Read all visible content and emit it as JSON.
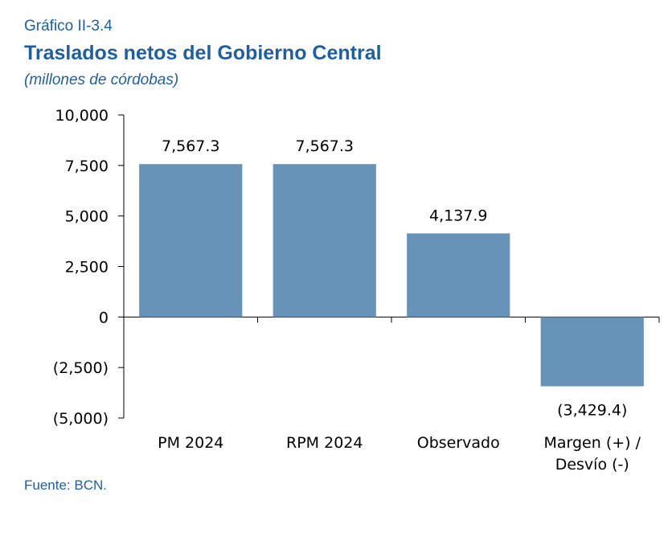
{
  "header": {
    "chart_label": "Gráfico II-3.4",
    "title": "Traslados netos del Gobierno Central",
    "subtitle": "(millones de córdobas)"
  },
  "source": "Fuente: BCN.",
  "chart_data": {
    "type": "bar",
    "categories": [
      [
        "PM 2024"
      ],
      [
        "RPM 2024"
      ],
      [
        "Observado"
      ],
      [
        "Margen (+) /",
        "Desvío (-)"
      ]
    ],
    "values": [
      7567.3,
      7567.3,
      4137.9,
      -3429.4
    ],
    "data_labels": [
      "7,567.3",
      "7,567.3",
      "4,137.9",
      "(3,429.4)"
    ],
    "ylim": [
      -5000,
      10000
    ],
    "yticks": [
      10000,
      7500,
      5000,
      2500,
      0,
      -2500,
      -5000
    ],
    "ytick_labels": [
      "10,000",
      "7,500",
      "5,000",
      "2,500",
      "0",
      "(2,500)",
      "(5,000)"
    ],
    "bar_color": "#6793b8",
    "grid": false,
    "legend": "none"
  }
}
